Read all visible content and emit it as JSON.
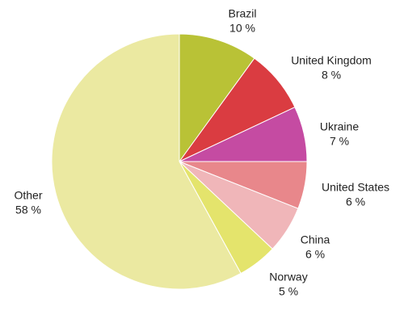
{
  "chart_data": {
    "type": "pie",
    "categories": [
      "Brazil",
      "United Kingdom",
      "Ukraine",
      "United States",
      "China",
      "Norway",
      "Other"
    ],
    "values": [
      10,
      8,
      7,
      6,
      6,
      5,
      58
    ],
    "value_labels": [
      "10 %",
      "8 %",
      "7 %",
      "6 %",
      "6 %",
      "5 %",
      "58 %"
    ],
    "colors": [
      "#b9c236",
      "#da3c41",
      "#c54ba2",
      "#e8878b",
      "#f0b6b9",
      "#e4e46c",
      "#ebe9a1"
    ]
  }
}
